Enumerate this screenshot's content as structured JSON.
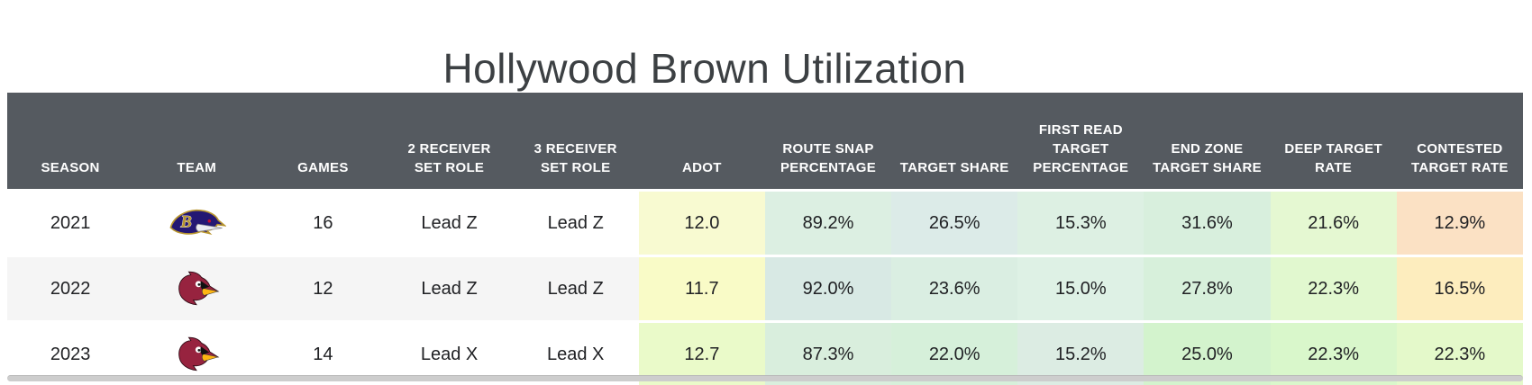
{
  "title": "Hollywood Brown Utilization",
  "colors": {
    "header_bg": "#555a60",
    "header_text": "#ffffff",
    "title_text": "#3c4043",
    "body_text": "#202124",
    "row_alt_bg": "#f5f5f5",
    "scrollbar": "#cdcdcd",
    "ravens_purple": "#241773",
    "ravens_gold": "#b8952e",
    "ravens_red": "#c60c30",
    "cardinals_red": "#97233f",
    "cardinals_yellow": "#ffb612"
  },
  "table": {
    "columns": [
      {
        "key": "season",
        "label": "SEASON",
        "type": "text"
      },
      {
        "key": "team",
        "label": "TEAM",
        "type": "logo"
      },
      {
        "key": "games",
        "label": "GAMES",
        "type": "text"
      },
      {
        "key": "role_2wr",
        "label": "2 RECEIVER SET ROLE",
        "type": "text"
      },
      {
        "key": "role_3wr",
        "label": "3 RECEIVER SET ROLE",
        "type": "text"
      },
      {
        "key": "adot",
        "label": "ADOT",
        "type": "metric"
      },
      {
        "key": "route_snap_pct",
        "label": "ROUTE SNAP PERCENTAGE",
        "type": "metric"
      },
      {
        "key": "target_share",
        "label": "TARGET SHARE",
        "type": "metric"
      },
      {
        "key": "first_read_target_pct",
        "label": "FIRST READ TARGET PERCENTAGE",
        "type": "metric"
      },
      {
        "key": "end_zone_target_share",
        "label": "END ZONE TARGET SHARE",
        "type": "metric"
      },
      {
        "key": "deep_target_rate",
        "label": "DEEP TARGET RATE",
        "type": "metric"
      },
      {
        "key": "contested_target_rate",
        "label": "CONTESTED TARGET RATE",
        "type": "metric"
      }
    ],
    "rows": [
      {
        "season": "2021",
        "team": {
          "id": "ravens",
          "name": "Baltimore Ravens"
        },
        "games": "16",
        "role_2wr": "Lead Z",
        "role_3wr": "Lead Z",
        "metrics": {
          "adot": {
            "value": "12.0",
            "bg": "#f8fad1"
          },
          "route_snap_pct": {
            "value": "89.2%",
            "bg": "#dcefe2"
          },
          "target_share": {
            "value": "26.5%",
            "bg": "#dcebe8"
          },
          "first_read_target_pct": {
            "value": "15.3%",
            "bg": "#ddf0e3"
          },
          "end_zone_target_share": {
            "value": "31.6%",
            "bg": "#d8efdd"
          },
          "deep_target_rate": {
            "value": "21.6%",
            "bg": "#e5f8d2"
          },
          "contested_target_rate": {
            "value": "12.9%",
            "bg": "#fbe1c4"
          }
        }
      },
      {
        "season": "2022",
        "team": {
          "id": "cardinals",
          "name": "Arizona Cardinals"
        },
        "games": "12",
        "role_2wr": "Lead Z",
        "role_3wr": "Lead Z",
        "metrics": {
          "adot": {
            "value": "11.7",
            "bg": "#f9fbc7"
          },
          "route_snap_pct": {
            "value": "92.0%",
            "bg": "#d8e9e4"
          },
          "target_share": {
            "value": "23.6%",
            "bg": "#daeee2"
          },
          "first_read_target_pct": {
            "value": "15.0%",
            "bg": "#def1e5"
          },
          "end_zone_target_share": {
            "value": "27.8%",
            "bg": "#d7f0db"
          },
          "deep_target_rate": {
            "value": "22.3%",
            "bg": "#e1f8cf"
          },
          "contested_target_rate": {
            "value": "16.5%",
            "bg": "#fdedbe"
          }
        }
      },
      {
        "season": "2023",
        "team": {
          "id": "cardinals",
          "name": "Arizona Cardinals"
        },
        "games": "14",
        "role_2wr": "Lead X",
        "role_3wr": "Lead X",
        "metrics": {
          "adot": {
            "value": "12.7",
            "bg": "#eafac9"
          },
          "route_snap_pct": {
            "value": "87.3%",
            "bg": "#d9eedd"
          },
          "target_share": {
            "value": "22.0%",
            "bg": "#d6f0da"
          },
          "first_read_target_pct": {
            "value": "15.2%",
            "bg": "#dcece3"
          },
          "end_zone_target_share": {
            "value": "25.0%",
            "bg": "#d3f3cd"
          },
          "deep_target_rate": {
            "value": "22.3%",
            "bg": "#d9f7cb"
          },
          "contested_target_rate": {
            "value": "22.3%",
            "bg": "#e4f9ca"
          }
        }
      }
    ]
  }
}
